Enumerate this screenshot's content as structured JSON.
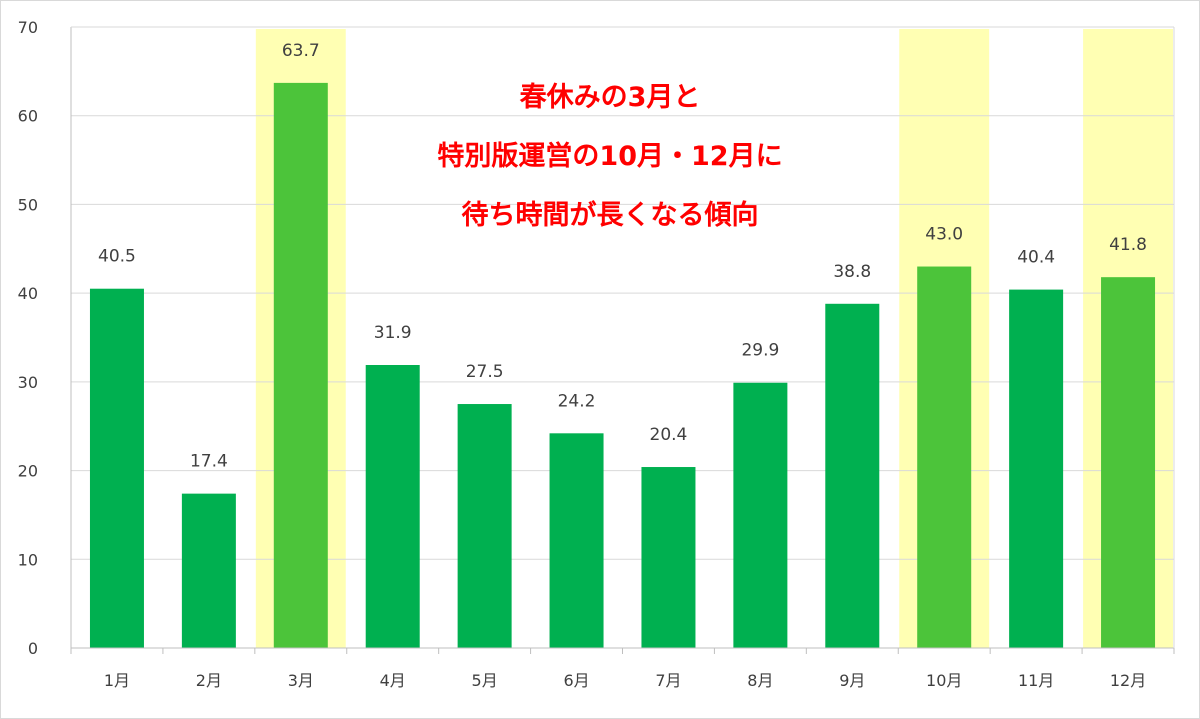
{
  "chart_data": {
    "type": "bar",
    "categories": [
      "1月",
      "2月",
      "3月",
      "4月",
      "5月",
      "6月",
      "7月",
      "8月",
      "9月",
      "10月",
      "11月",
      "12月"
    ],
    "values": [
      40.5,
      17.4,
      63.7,
      31.9,
      27.5,
      24.2,
      20.4,
      29.9,
      38.8,
      43.0,
      40.4,
      41.8
    ],
    "value_labels": [
      "40.5",
      "17.4",
      "63.7",
      "31.9",
      "27.5",
      "24.2",
      "20.4",
      "29.9",
      "38.8",
      "43.0",
      "40.4",
      "41.8"
    ],
    "highlighted": [
      false,
      false,
      true,
      false,
      false,
      false,
      false,
      false,
      false,
      true,
      false,
      true
    ],
    "ylim": [
      0,
      70
    ],
    "yticks": [
      "0",
      "10",
      "20",
      "30",
      "40",
      "50",
      "60",
      "70"
    ],
    "grid": true,
    "title": "",
    "xlabel": "",
    "ylabel": "",
    "annotation_lines": [
      "春休みの3月と",
      "特別版運営の10月・12月に",
      "待ち時間が長くなる傾向"
    ],
    "colors": {
      "bar": "#00b050",
      "bar_highlight": "#4cc43a",
      "highlight_band": "#ffffb3",
      "annotation": "#ff0000",
      "grid": "#d9d9d9",
      "axis": "#bfbfbf"
    }
  }
}
